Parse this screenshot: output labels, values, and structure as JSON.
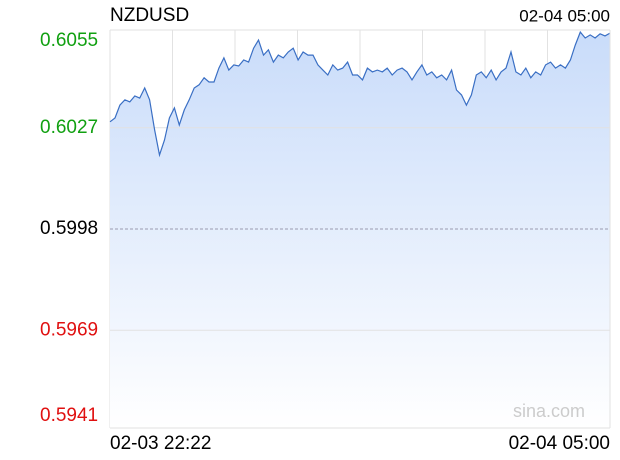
{
  "chart_data": {
    "type": "line",
    "title": "NZDUSD",
    "timestamp": "02-04 05:00",
    "watermark": "sina.com",
    "xlabels": [
      "02-03 22:22",
      "02-04 05:00"
    ],
    "color": "#3a6fc4",
    "colors": {
      "up": "#11a011",
      "flat": "#000000",
      "down": "#e01010"
    },
    "ylim": [
      0.5941,
      0.6055
    ],
    "yticks": [
      0.5941,
      0.5969,
      0.5998,
      0.6027,
      0.6055
    ],
    "grid": true,
    "values": [
      0.60287,
      0.60298,
      0.60335,
      0.6035,
      0.60344,
      0.60361,
      0.60355,
      0.60384,
      0.6035,
      0.60264,
      0.60192,
      0.60235,
      0.60298,
      0.60327,
      0.60278,
      0.60321,
      0.6035,
      0.60384,
      0.60393,
      0.60413,
      0.60401,
      0.60401,
      0.60441,
      0.6047,
      0.60435,
      0.6045,
      0.60447,
      0.60464,
      0.60458,
      0.60498,
      0.60521,
      0.60478,
      0.60493,
      0.60458,
      0.60478,
      0.6047,
      0.60487,
      0.60498,
      0.60464,
      0.60487,
      0.60478,
      0.60478,
      0.6045,
      0.60435,
      0.60421,
      0.6045,
      0.60435,
      0.60441,
      0.60458,
      0.60421,
      0.60421,
      0.60407,
      0.60441,
      0.6043,
      0.60435,
      0.6043,
      0.60441,
      0.60421,
      0.60435,
      0.60441,
      0.6043,
      0.60407,
      0.6043,
      0.6045,
      0.60421,
      0.6043,
      0.60413,
      0.60421,
      0.60407,
      0.60435,
      0.60378,
      0.60364,
      0.60335,
      0.60364,
      0.60421,
      0.6043,
      0.60413,
      0.60435,
      0.60407,
      0.6043,
      0.60441,
      0.60487,
      0.6043,
      0.60421,
      0.60441,
      0.60413,
      0.6043,
      0.60421,
      0.6045,
      0.60458,
      0.60441,
      0.6045,
      0.60441,
      0.60464,
      0.60507,
      0.60544,
      0.60527,
      0.60536,
      0.60527,
      0.60539,
      0.60533,
      0.60541
    ]
  }
}
